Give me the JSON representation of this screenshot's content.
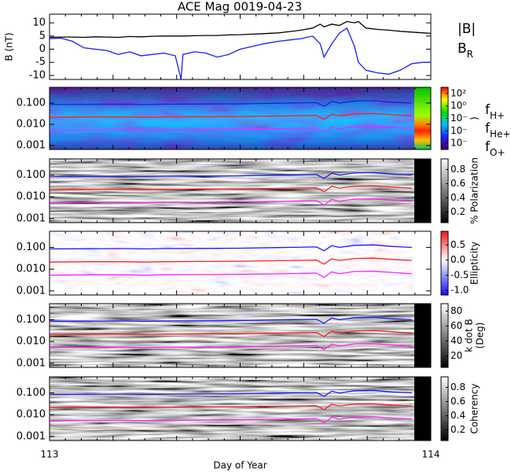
{
  "chart_data": [
    {
      "type": "line",
      "title": "ACE Mag 0019-04-23",
      "ylabel": "B (nT)",
      "xlim": [
        113,
        114
      ],
      "ylim": [
        -11.5,
        13.3
      ],
      "yticks": [
        -10,
        -5,
        0,
        5,
        10
      ],
      "x": [
        113.0,
        113.03,
        113.06,
        113.09,
        113.12,
        113.15,
        113.18,
        113.21,
        113.24,
        113.27,
        113.3,
        113.33,
        113.345,
        113.35,
        113.38,
        113.41,
        113.44,
        113.47,
        113.5,
        113.53,
        113.56,
        113.6,
        113.63,
        113.66,
        113.69,
        113.71,
        113.72,
        113.74,
        113.76,
        113.78,
        113.8,
        113.81,
        113.83,
        113.86,
        113.89,
        113.92,
        113.95,
        113.98,
        114.0
      ],
      "series": [
        {
          "name": "|B|",
          "color": "#000000",
          "values": [
            4.5,
            4.6,
            4.6,
            4.5,
            4.7,
            4.6,
            4.5,
            4.8,
            4.7,
            4.9,
            5.0,
            5.0,
            5.0,
            5.0,
            5.1,
            5.2,
            5.2,
            5.4,
            5.5,
            5.7,
            5.9,
            6.2,
            6.7,
            7.2,
            8.0,
            9.5,
            8.5,
            9.5,
            9.0,
            10.5,
            10.0,
            10.5,
            8.0,
            7.5,
            7.2,
            6.8,
            6.5,
            6.2,
            6.0
          ]
        },
        {
          "name": "BR",
          "color": "#1a1aff",
          "values": [
            4.0,
            4.2,
            3.0,
            0.5,
            0.0,
            -0.5,
            -2.0,
            -1.0,
            -2.5,
            -2.0,
            -1.5,
            -2.5,
            -11.5,
            -2.0,
            -1.0,
            -1.5,
            -3.0,
            -2.0,
            0.0,
            1.0,
            2.0,
            3.0,
            3.5,
            4.0,
            5.0,
            2.0,
            -3.0,
            2.0,
            6.0,
            8.0,
            1.0,
            -5.0,
            -8.0,
            -9.0,
            -9.5,
            -8.0,
            -5.5,
            -5.0,
            -5.0
          ]
        }
      ]
    },
    {
      "type": "spectrogram",
      "colormap": "rainbow",
      "xlim": [
        113,
        114
      ],
      "ylog": true,
      "ylim": [
        0.00065,
        0.55
      ],
      "yticks": [
        0.001,
        {
          "value": 0.01,
          "label": "0.010"
        },
        {
          "value": 0.1,
          "label": "0.100"
        }
      ],
      "clim": [
        -7,
        3
      ],
      "cticks": [
        {
          "value": 2,
          "label": "10²"
        },
        {
          "value": 0,
          "label": "10⁰"
        },
        {
          "value": -2,
          "label": "10⁻"
        },
        {
          "value": -4,
          "label": "10⁻"
        },
        {
          "value": -6,
          "label": "10⁻"
        }
      ],
      "clabel": ")",
      "x": [
        113.0,
        113.1,
        113.2,
        113.25,
        113.3,
        113.4,
        113.5,
        113.6,
        113.7,
        113.72,
        113.74,
        113.76,
        113.8,
        113.85,
        113.9,
        113.95
      ],
      "series": [
        {
          "name": "fH+",
          "color": "#1a1aff",
          "values": [
            0.085,
            0.087,
            0.088,
            0.085,
            0.088,
            0.09,
            0.092,
            0.098,
            0.105,
            0.07,
            0.12,
            0.1,
            0.125,
            0.13,
            0.11,
            0.1
          ]
        },
        {
          "name": "fHe+",
          "color": "#ff2020",
          "values": [
            0.021,
            0.022,
            0.022,
            0.021,
            0.022,
            0.0225,
            0.023,
            0.0245,
            0.026,
            0.017,
            0.03,
            0.025,
            0.031,
            0.032,
            0.028,
            0.025
          ]
        },
        {
          "name": "fO+",
          "color": "#ff20ff",
          "values": [
            0.0053,
            0.0055,
            0.0055,
            0.0053,
            0.0055,
            0.0056,
            0.0058,
            0.0061,
            0.0066,
            0.0042,
            0.0075,
            0.0062,
            0.0078,
            0.008,
            0.007,
            0.0062
          ]
        }
      ]
    },
    {
      "type": "spectrogram",
      "colormap": "gray",
      "xlim": [
        113,
        114
      ],
      "ylog": true,
      "ylim": [
        0.00065,
        0.55
      ],
      "yticks": [
        0.001,
        {
          "value": 0.01,
          "label": "0.010"
        },
        {
          "value": 0.1,
          "label": "0.100"
        }
      ],
      "clim": [
        0.05,
        0.95
      ],
      "cticks": [
        0.2,
        0.4,
        0.6,
        0.8
      ],
      "clabel": "% Polarization",
      "x": [
        113.0,
        113.1,
        113.2,
        113.25,
        113.3,
        113.4,
        113.5,
        113.6,
        113.7,
        113.72,
        113.74,
        113.76,
        113.8,
        113.85,
        113.9,
        113.95
      ],
      "series": [
        {
          "color": "#1a1aff",
          "values": [
            0.085,
            0.087,
            0.088,
            0.085,
            0.088,
            0.09,
            0.092,
            0.098,
            0.105,
            0.07,
            0.12,
            0.1,
            0.125,
            0.13,
            0.11,
            0.1
          ]
        },
        {
          "color": "#ff2020",
          "values": [
            0.021,
            0.022,
            0.022,
            0.021,
            0.022,
            0.0225,
            0.023,
            0.0245,
            0.026,
            0.017,
            0.03,
            0.025,
            0.031,
            0.032,
            0.028,
            0.025
          ]
        },
        {
          "color": "#ff20ff",
          "values": [
            0.0053,
            0.0055,
            0.0055,
            0.0053,
            0.0055,
            0.0056,
            0.0058,
            0.0061,
            0.0066,
            0.0042,
            0.0075,
            0.0062,
            0.0078,
            0.008,
            0.007,
            0.0062
          ]
        }
      ]
    },
    {
      "type": "spectrogram",
      "colormap": "red-blue",
      "xlim": [
        113,
        114
      ],
      "ylog": true,
      "ylim": [
        0.00065,
        0.55
      ],
      "yticks": [
        0.001,
        {
          "value": 0.01,
          "label": "0.010"
        },
        {
          "value": 0.1,
          "label": "0.100"
        }
      ],
      "clim": [
        -1.15,
        0.95
      ],
      "cticks": [
        {
          "value": -1,
          "label": "-1.0"
        },
        -0.5,
        {
          "value": 0,
          "label": "0.0"
        },
        0.5
      ],
      "clabel": "Ellipticity",
      "x": [
        113.0,
        113.1,
        113.2,
        113.25,
        113.3,
        113.4,
        113.5,
        113.6,
        113.7,
        113.72,
        113.74,
        113.76,
        113.8,
        113.85,
        113.9,
        113.95
      ],
      "series": [
        {
          "color": "#1a1aff",
          "values": [
            0.085,
            0.087,
            0.088,
            0.085,
            0.088,
            0.09,
            0.092,
            0.098,
            0.105,
            0.07,
            0.12,
            0.1,
            0.125,
            0.13,
            0.11,
            0.1
          ]
        },
        {
          "color": "#ff2020",
          "values": [
            0.021,
            0.022,
            0.022,
            0.021,
            0.022,
            0.0225,
            0.023,
            0.0245,
            0.026,
            0.017,
            0.03,
            0.025,
            0.031,
            0.032,
            0.028,
            0.025
          ]
        },
        {
          "color": "#ff20ff",
          "values": [
            0.0053,
            0.0055,
            0.0055,
            0.0053,
            0.0055,
            0.0056,
            0.0058,
            0.0061,
            0.0066,
            0.0042,
            0.0075,
            0.0062,
            0.0078,
            0.008,
            0.007,
            0.0062
          ]
        }
      ]
    },
    {
      "type": "spectrogram",
      "colormap": "gray",
      "xlim": [
        113,
        114
      ],
      "ylog": true,
      "ylim": [
        0.00065,
        0.55
      ],
      "yticks": [
        0.001,
        {
          "value": 0.01,
          "label": "0.010"
        },
        {
          "value": 0.1,
          "label": "0.100"
        }
      ],
      "clim": [
        5,
        90
      ],
      "cticks": [
        20,
        40,
        60,
        80
      ],
      "clabel": [
        "k dot B",
        "(Deg)"
      ],
      "x": [
        113.0,
        113.1,
        113.2,
        113.25,
        113.3,
        113.4,
        113.5,
        113.6,
        113.7,
        113.72,
        113.74,
        113.76,
        113.8,
        113.85,
        113.9,
        113.95
      ],
      "series": [
        {
          "color": "#1a1aff",
          "values": [
            0.085,
            0.087,
            0.088,
            0.085,
            0.088,
            0.09,
            0.092,
            0.098,
            0.105,
            0.07,
            0.12,
            0.1,
            0.125,
            0.13,
            0.11,
            0.1
          ]
        },
        {
          "color": "#ff2020",
          "values": [
            0.021,
            0.022,
            0.022,
            0.021,
            0.022,
            0.0225,
            0.023,
            0.0245,
            0.026,
            0.017,
            0.03,
            0.025,
            0.031,
            0.032,
            0.028,
            0.025
          ]
        },
        {
          "color": "#ff20ff",
          "values": [
            0.0053,
            0.0055,
            0.0055,
            0.0053,
            0.0055,
            0.0056,
            0.0058,
            0.0061,
            0.0066,
            0.0042,
            0.0075,
            0.0062,
            0.0078,
            0.008,
            0.007,
            0.0062
          ]
        }
      ]
    },
    {
      "type": "spectrogram",
      "colormap": "gray",
      "xlim": [
        113,
        114
      ],
      "ylog": true,
      "ylim": [
        0.00065,
        0.55
      ],
      "yticks": [
        0.001,
        {
          "value": 0.01,
          "label": "0.010"
        },
        {
          "value": 0.1,
          "label": "0.100"
        }
      ],
      "clim": [
        0.05,
        0.95
      ],
      "cticks": [
        0.2,
        0.4,
        0.6,
        0.8
      ],
      "clabel": "Coherency",
      "xticks": [
        113,
        114
      ],
      "xlabel": "Day of Year",
      "x": [
        113.0,
        113.1,
        113.2,
        113.25,
        113.3,
        113.4,
        113.5,
        113.6,
        113.7,
        113.72,
        113.74,
        113.76,
        113.8,
        113.85,
        113.9,
        113.95
      ],
      "series": [
        {
          "color": "#1a1aff",
          "values": [
            0.085,
            0.087,
            0.088,
            0.085,
            0.088,
            0.09,
            0.092,
            0.098,
            0.105,
            0.07,
            0.12,
            0.1,
            0.125,
            0.13,
            0.11,
            0.1
          ]
        },
        {
          "color": "#ff2020",
          "values": [
            0.021,
            0.022,
            0.022,
            0.021,
            0.022,
            0.0225,
            0.023,
            0.0245,
            0.026,
            0.017,
            0.03,
            0.025,
            0.031,
            0.032,
            0.028,
            0.025
          ]
        },
        {
          "color": "#ff20ff",
          "values": [
            0.0053,
            0.0055,
            0.0055,
            0.0053,
            0.0055,
            0.0056,
            0.0058,
            0.0061,
            0.0066,
            0.0042,
            0.0075,
            0.0062,
            0.0078,
            0.008,
            0.007,
            0.0062
          ]
        }
      ]
    }
  ]
}
